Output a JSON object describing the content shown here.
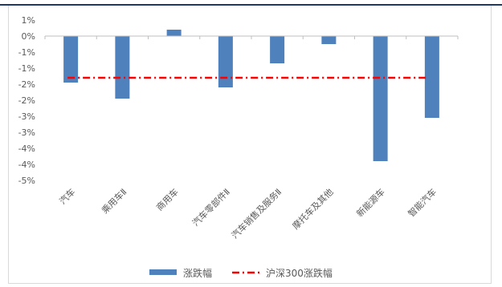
{
  "chart_data": {
    "type": "bar",
    "categories": [
      "汽车",
      "乘用车Ⅱ",
      "商用车",
      "汽车零部件Ⅱ",
      "汽车销售及服务Ⅱ",
      "摩托车及其他",
      "新能源车",
      "智能汽车"
    ],
    "series": [
      {
        "name": "涨跌幅",
        "type": "bar",
        "color": "#4f81bd",
        "values": [
          -1.45,
          -1.95,
          0.2,
          -1.6,
          -0.85,
          -0.25,
          -3.9,
          -2.55
        ]
      },
      {
        "name": "沪深300涨跌幅",
        "type": "line",
        "color": "#ff0000",
        "values": [
          -1.3,
          -1.3,
          -1.3,
          -1.3,
          -1.3,
          -1.3,
          -1.3,
          -1.3
        ]
      }
    ],
    "y_tick_labels": [
      "1%",
      "0%",
      "-1%",
      "-1%",
      "-2%",
      "-2%",
      "-3%",
      "-3%",
      "-4%",
      "-4%",
      "-5%"
    ],
    "ylim": [
      -4.5,
      0.5
    ],
    "grid": false,
    "legend_position": "bottom"
  }
}
